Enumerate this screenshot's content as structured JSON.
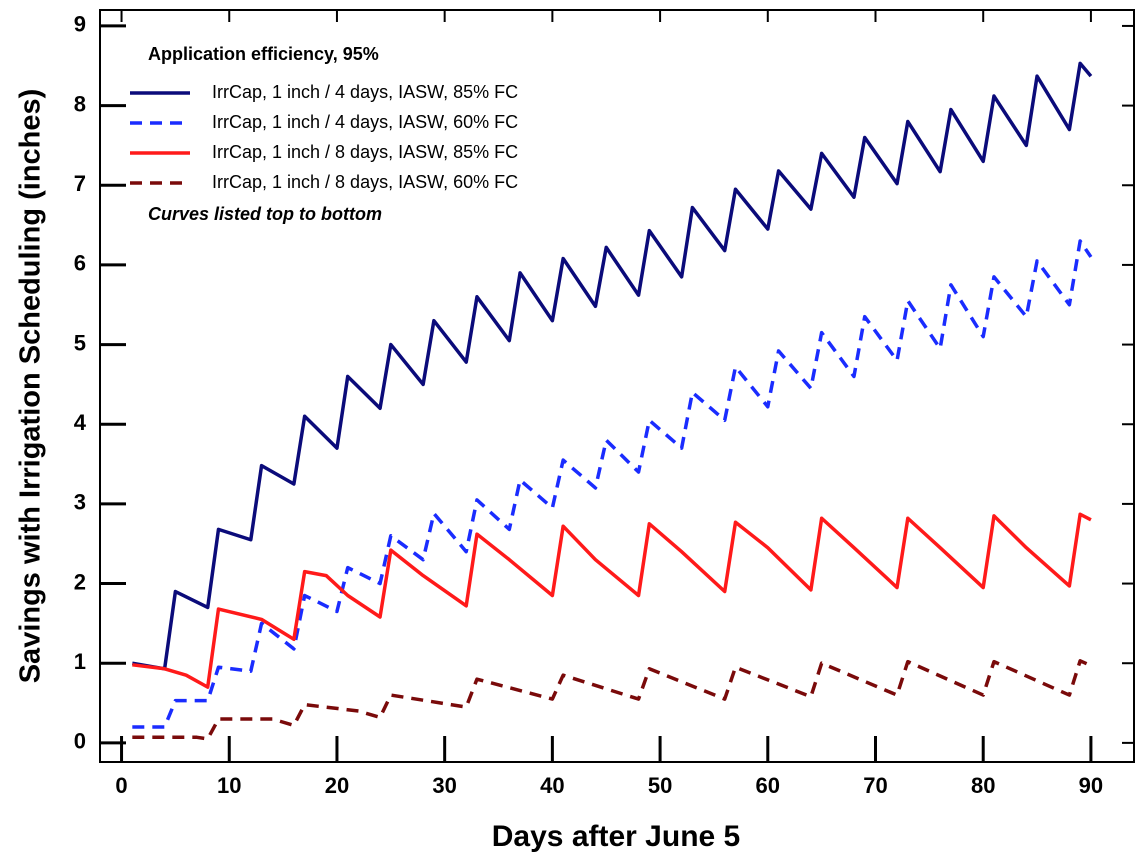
{
  "chart_data": {
    "type": "line",
    "xlabel": "Days after June 5",
    "ylabel": "Savings with Irrigation Scheduling (inches)",
    "legend_title": "Application efficiency, 95%",
    "annotation": "Curves listed top to bottom",
    "legend_position": "upper left",
    "xlim": [
      -2,
      94
    ],
    "ylim": [
      -0.24,
      9.2
    ],
    "xticks": [
      0,
      10,
      20,
      30,
      40,
      50,
      60,
      70,
      80,
      90
    ],
    "yticks": [
      0,
      1,
      2,
      3,
      4,
      5,
      6,
      7,
      8,
      9
    ],
    "series": [
      {
        "name": "IrrCap, 1 inch / 4 days, IASW, 85% FC",
        "color": "#0b0b7a",
        "dashed": false,
        "x": [
          1,
          4,
          5,
          8,
          9,
          12,
          13,
          16,
          17,
          20,
          21,
          24,
          25,
          28,
          29,
          32,
          33,
          36,
          37,
          40,
          41,
          44,
          45,
          48,
          49,
          52,
          53,
          56,
          57,
          60,
          61,
          64,
          65,
          68,
          69,
          72,
          73,
          76,
          77,
          80,
          81,
          84,
          85,
          88,
          89,
          90
        ],
        "values": [
          1.0,
          0.93,
          1.9,
          1.7,
          2.68,
          2.55,
          3.48,
          3.25,
          4.1,
          3.7,
          4.6,
          4.2,
          5.0,
          4.5,
          5.3,
          4.78,
          5.6,
          5.05,
          5.9,
          5.3,
          6.08,
          5.48,
          6.22,
          5.62,
          6.43,
          5.85,
          6.72,
          6.18,
          6.95,
          6.45,
          7.18,
          6.7,
          7.4,
          6.85,
          7.6,
          7.02,
          7.8,
          7.17,
          7.95,
          7.3,
          8.12,
          7.5,
          8.37,
          7.7,
          8.53,
          8.37
        ]
      },
      {
        "name": "IrrCap, 1 inch / 4 days, IASW, 60% FC",
        "color": "#1a2cff",
        "dashed": true,
        "x": [
          1,
          4,
          5,
          8,
          9,
          12,
          13,
          16,
          17,
          20,
          21,
          24,
          25,
          28,
          29,
          32,
          33,
          36,
          37,
          40,
          41,
          44,
          45,
          48,
          49,
          52,
          53,
          56,
          57,
          60,
          61,
          64,
          65,
          68,
          69,
          72,
          73,
          76,
          77,
          80,
          81,
          84,
          85,
          88,
          89,
          90
        ],
        "values": [
          0.2,
          0.2,
          0.53,
          0.53,
          0.95,
          0.9,
          1.5,
          1.18,
          1.85,
          1.65,
          2.2,
          2.0,
          2.6,
          2.3,
          2.88,
          2.4,
          3.05,
          2.68,
          3.3,
          2.95,
          3.55,
          3.2,
          3.8,
          3.4,
          4.05,
          3.7,
          4.4,
          4.05,
          4.72,
          4.22,
          4.92,
          4.45,
          5.15,
          4.6,
          5.35,
          4.8,
          5.55,
          4.95,
          5.75,
          5.1,
          5.85,
          5.35,
          6.05,
          5.5,
          6.3,
          6.1
        ]
      },
      {
        "name": "IrrCap, 1 inch / 8 days, IASW, 85% FC",
        "color": "#ff1a1a",
        "dashed": false,
        "x": [
          1,
          4,
          6,
          8,
          9,
          13,
          16,
          17,
          19,
          21,
          24,
          25,
          28,
          32,
          33,
          36,
          40,
          41,
          44,
          48,
          49,
          52,
          56,
          57,
          60,
          64,
          65,
          68,
          72,
          73,
          76,
          80,
          81,
          84,
          88,
          89,
          90
        ],
        "values": [
          0.98,
          0.93,
          0.85,
          0.7,
          1.68,
          1.55,
          1.3,
          2.15,
          2.1,
          1.85,
          1.58,
          2.42,
          2.1,
          1.72,
          2.62,
          2.3,
          1.85,
          2.72,
          2.3,
          1.85,
          2.75,
          2.4,
          1.9,
          2.77,
          2.45,
          1.92,
          2.82,
          2.45,
          1.95,
          2.82,
          2.45,
          1.95,
          2.85,
          2.45,
          1.97,
          2.87,
          2.8
        ]
      },
      {
        "name": "IrrCap, 1 inch / 8 days, IASW, 60% FC",
        "color": "#7a0a0a",
        "dashed": true,
        "x": [
          1,
          7,
          8,
          9,
          14,
          16,
          17,
          22,
          24,
          25,
          32,
          33,
          40,
          41,
          48,
          49,
          56,
          57,
          64,
          65,
          72,
          73,
          80,
          81,
          88,
          89,
          90
        ],
        "values": [
          0.07,
          0.07,
          0.05,
          0.3,
          0.3,
          0.22,
          0.48,
          0.4,
          0.32,
          0.6,
          0.45,
          0.8,
          0.55,
          0.85,
          0.55,
          0.93,
          0.55,
          0.95,
          0.58,
          1.0,
          0.6,
          1.02,
          0.6,
          1.02,
          0.6,
          1.03,
          0.97
        ]
      }
    ]
  }
}
